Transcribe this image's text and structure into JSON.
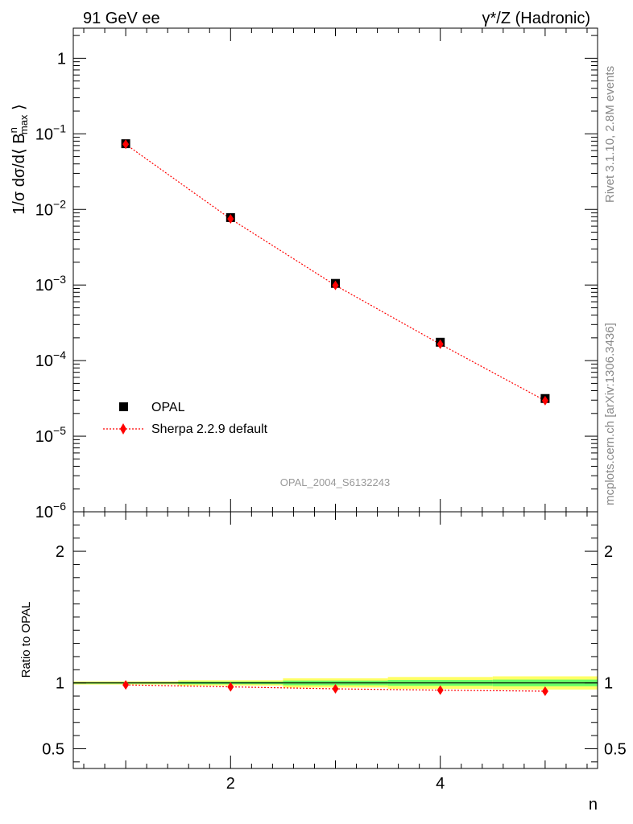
{
  "header": {
    "left": "91 GeV ee",
    "right": "γ*/Z (Hadronic)"
  },
  "side_labels": {
    "rivet": "Rivet 3.1.10,  2.8M events",
    "mcplots": "mcplots.cern.ch [arXiv:1306.3436]"
  },
  "watermark": "OPAL_2004_S6132243",
  "chart_data": [
    {
      "type": "scatter",
      "panel": "main",
      "ylabel": "1/σ dσ/d⟨ B^n_max ⟩",
      "yscale": "log",
      "ylim": [
        1e-06,
        2.5
      ],
      "xlim": [
        0.5,
        5.5
      ],
      "ytick_labels": [
        "1",
        "10^-1",
        "10^-2",
        "10^-3",
        "10^-4",
        "10^-5",
        "10^-6"
      ],
      "legend": {
        "placement": "lower-left",
        "entries": [
          "OPAL",
          "Sherpa 2.2.9 default"
        ]
      },
      "series": [
        {
          "name": "OPAL",
          "x": [
            1,
            2,
            3,
            4,
            5
          ],
          "y": [
            0.074,
            0.0078,
            0.00105,
            0.000175,
            3.15e-05
          ],
          "color": "#000000",
          "marker": "square"
        },
        {
          "name": "Sherpa 2.2.9 default",
          "x": [
            1,
            2,
            3,
            4,
            5
          ],
          "y": [
            0.0728,
            0.0075,
            0.00099,
            0.000165,
            2.95e-05
          ],
          "color": "#ff0000",
          "marker": "diamond",
          "line": "dotted"
        }
      ]
    },
    {
      "type": "line",
      "panel": "ratio",
      "ylabel": "Ratio to OPAL",
      "xlabel": "n",
      "ylim": [
        0.35,
        2.3
      ],
      "xlim": [
        0.5,
        5.5
      ],
      "xtick_labels": [
        "2",
        "4"
      ],
      "ytick_labels": [
        "0.5",
        "1",
        "2"
      ],
      "reference": {
        "y": 1.0,
        "color": "#000000"
      },
      "bands": [
        {
          "x_edges": [
            0.5,
            1.5,
            2.5,
            3.5,
            4.5,
            5.5
          ],
          "yellow_halfwidth": [
            0.012,
            0.02,
            0.035,
            0.045,
            0.05
          ],
          "green_halfwidth": [
            0.006,
            0.01,
            0.018,
            0.022,
            0.025
          ],
          "yellow": "#ffff66",
          "green": "#66ff66"
        }
      ],
      "series": [
        {
          "name": "Sherpa 2.2.9 default",
          "x": [
            1,
            2,
            3,
            4,
            5
          ],
          "y": [
            0.985,
            0.97,
            0.955,
            0.945,
            0.937
          ],
          "color": "#ff0000",
          "marker": "diamond",
          "line": "dotted"
        }
      ]
    }
  ]
}
